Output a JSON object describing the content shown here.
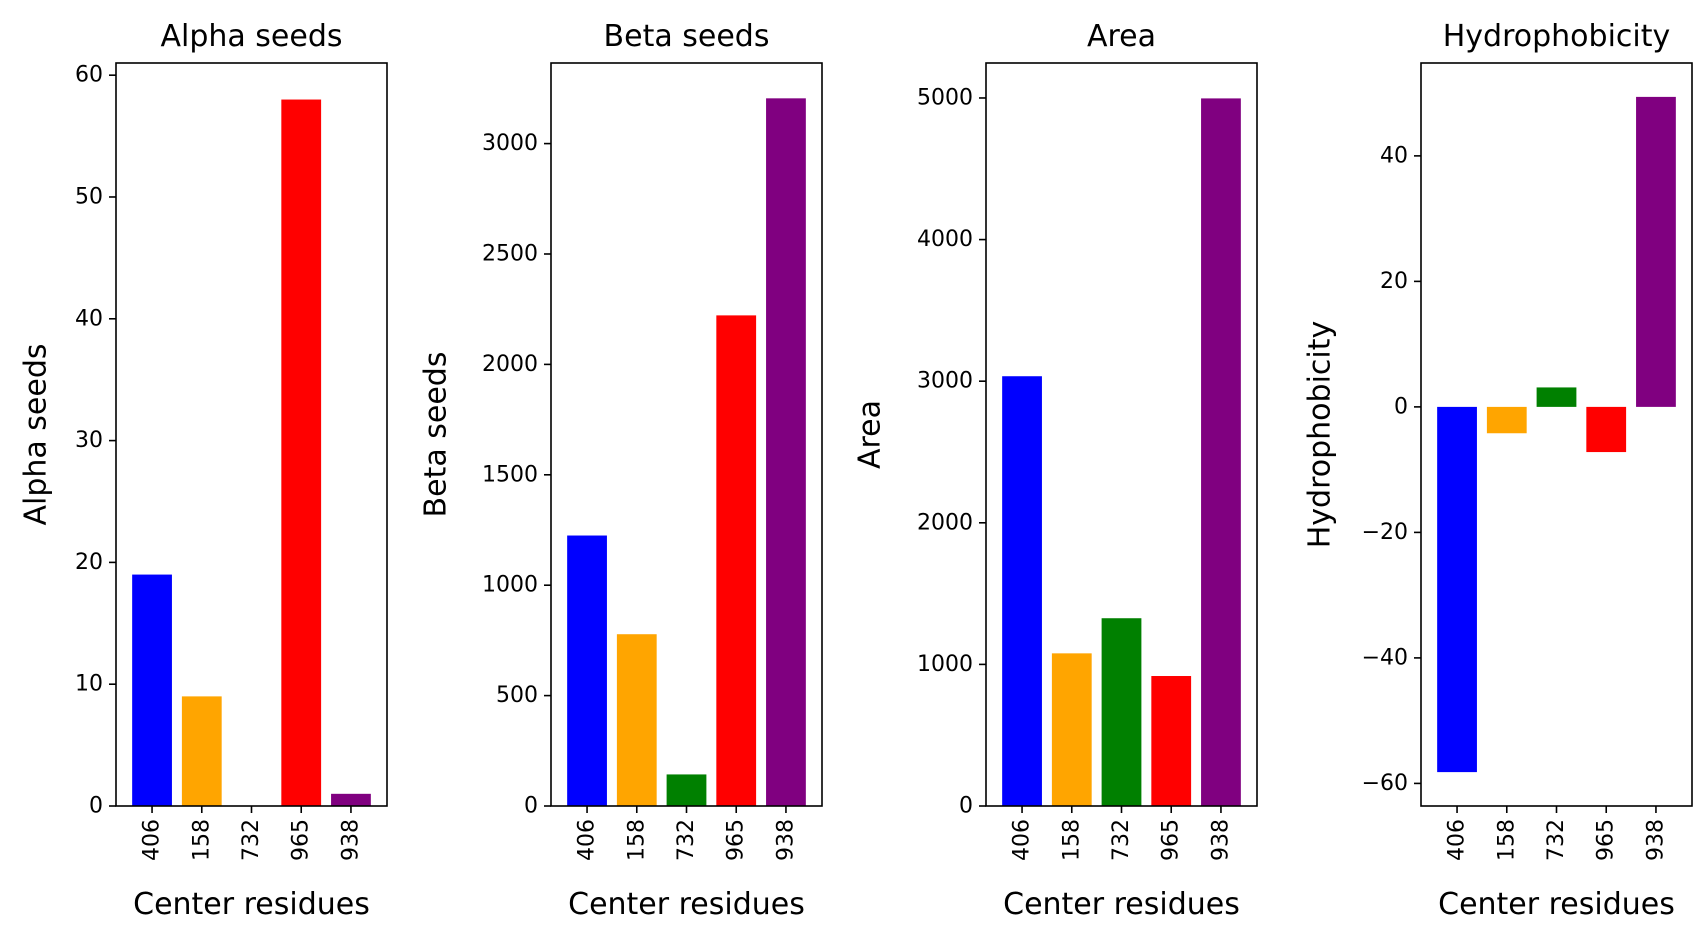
{
  "chart_data": [
    {
      "type": "bar",
      "title": "Alpha seeds",
      "xlabel": "Center residues",
      "ylabel": "Alpha seeds",
      "categories": [
        "406",
        "158",
        "732",
        "965",
        "938"
      ],
      "values": [
        19,
        9,
        0,
        58,
        1
      ],
      "colors": [
        "#0000ff",
        "#ffa500",
        "#008000",
        "#ff0000",
        "#800080"
      ],
      "ylim": [
        0,
        61
      ],
      "yticks": [
        0,
        10,
        20,
        30,
        40,
        50,
        60
      ],
      "ytick_labels": [
        "0",
        "10",
        "20",
        "30",
        "40",
        "50",
        "60"
      ]
    },
    {
      "type": "bar",
      "title": "Beta seeds",
      "xlabel": "Center residues",
      "ylabel": "Beta seeds",
      "categories": [
        "406",
        "158",
        "732",
        "965",
        "938"
      ],
      "values": [
        1225,
        778,
        143,
        2222,
        3205
      ],
      "colors": [
        "#0000ff",
        "#ffa500",
        "#008000",
        "#ff0000",
        "#800080"
      ],
      "ylim": [
        0,
        3365
      ],
      "yticks": [
        0,
        500,
        1000,
        1500,
        2000,
        2500,
        3000
      ],
      "ytick_labels": [
        "0",
        "500",
        "1000",
        "1500",
        "2000",
        "2500",
        "3000"
      ]
    },
    {
      "type": "bar",
      "title": "Area",
      "xlabel": "Center residues",
      "ylabel": "Area",
      "categories": [
        "406",
        "158",
        "732",
        "965",
        "938"
      ],
      "values": [
        3035,
        1078,
        1326,
        918,
        4997
      ],
      "colors": [
        "#0000ff",
        "#ffa500",
        "#008000",
        "#ff0000",
        "#800080"
      ],
      "ylim": [
        0,
        5247
      ],
      "yticks": [
        0,
        1000,
        2000,
        3000,
        4000,
        5000
      ],
      "ytick_labels": [
        "0",
        "1000",
        "2000",
        "3000",
        "4000",
        "5000"
      ]
    },
    {
      "type": "bar",
      "title": "Hydrophobicity",
      "xlabel": "Center residues",
      "ylabel": "Hydrophobicity",
      "categories": [
        "406",
        "158",
        "732",
        "965",
        "938"
      ],
      "values": [
        -58.2,
        -4.2,
        3.1,
        -7.2,
        49.4
      ],
      "colors": [
        "#0000ff",
        "#ffa500",
        "#008000",
        "#ff0000",
        "#800080"
      ],
      "ylim": [
        -63.6,
        54.8
      ],
      "yticks": [
        -60,
        -40,
        -20,
        0,
        20,
        40
      ],
      "ytick_labels": [
        "−60",
        "−40",
        "−20",
        "0",
        "20",
        "40"
      ]
    }
  ]
}
